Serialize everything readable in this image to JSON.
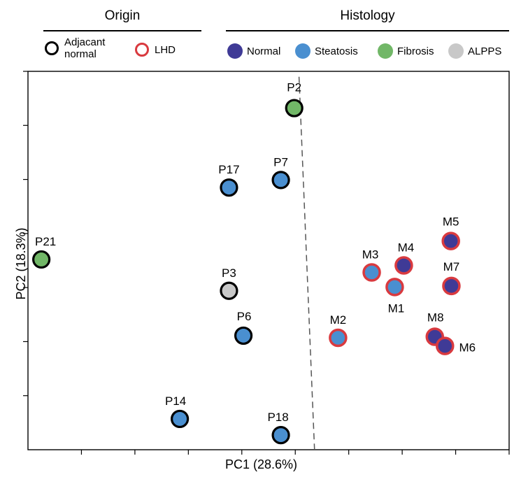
{
  "legend": {
    "origin": {
      "title": "Origin",
      "items": [
        {
          "label_line1": "Adjacant",
          "label_line2": "normal",
          "color": "#000000"
        },
        {
          "label": "LHD",
          "color": "#d93a3f"
        }
      ]
    },
    "histology": {
      "title": "Histology",
      "items": [
        {
          "label": "Normal",
          "color": "#3f3a96"
        },
        {
          "label": "Steatosis",
          "color": "#4a8fd0"
        },
        {
          "label": "Fibrosis",
          "color": "#71b767"
        },
        {
          "label": "ALPPS",
          "color": "#c8c8c8"
        }
      ]
    }
  },
  "chart_data": {
    "type": "scatter",
    "xlabel": "PC1 (28.6%)",
    "ylabel": "PC2 (18.3%)",
    "xlim": [
      0,
      9
    ],
    "ylim": [
      0,
      7
    ],
    "x_ticks": [
      1,
      2,
      3,
      4,
      5,
      6,
      7,
      8,
      9
    ],
    "y_ticks": [
      1,
      2,
      3,
      4,
      5,
      6,
      7
    ],
    "tick_labels_shown": false,
    "divider": {
      "style": "dashed",
      "from": [
        5.07,
        6.9
      ],
      "to": [
        5.36,
        0
      ]
    },
    "points": [
      {
        "label": "P2",
        "x": 4.98,
        "y": 6.32,
        "origin": "Adjacant normal",
        "histology": "Fibrosis"
      },
      {
        "label": "P17",
        "x": 3.76,
        "y": 4.85,
        "origin": "Adjacant normal",
        "histology": "Steatosis"
      },
      {
        "label": "P7",
        "x": 4.73,
        "y": 4.99,
        "origin": "Adjacant normal",
        "histology": "Steatosis"
      },
      {
        "label": "P21",
        "x": 0.25,
        "y": 3.52,
        "origin": "Adjacant normal",
        "histology": "Fibrosis"
      },
      {
        "label": "P3",
        "x": 3.76,
        "y": 2.94,
        "origin": "Adjacant normal",
        "histology": "ALPPS"
      },
      {
        "label": "P6",
        "x": 4.03,
        "y": 2.11,
        "origin": "Adjacant normal",
        "histology": "Steatosis"
      },
      {
        "label": "P14",
        "x": 2.84,
        "y": 0.57,
        "origin": "Adjacant normal",
        "histology": "Steatosis"
      },
      {
        "label": "P18",
        "x": 4.73,
        "y": 0.27,
        "origin": "Adjacant normal",
        "histology": "Steatosis"
      },
      {
        "label": "M5",
        "x": 7.91,
        "y": 3.86,
        "origin": "LHD",
        "histology": "Normal"
      },
      {
        "label": "M4",
        "x": 7.03,
        "y": 3.41,
        "origin": "LHD",
        "histology": "Normal"
      },
      {
        "label": "M3",
        "x": 6.43,
        "y": 3.28,
        "origin": "LHD",
        "histology": "Steatosis"
      },
      {
        "label": "M7",
        "x": 7.92,
        "y": 3.03,
        "origin": "LHD",
        "histology": "Normal"
      },
      {
        "label": "M1",
        "x": 6.86,
        "y": 3.01,
        "origin": "LHD",
        "histology": "Steatosis"
      },
      {
        "label": "M2",
        "x": 5.8,
        "y": 2.07,
        "origin": "LHD",
        "histology": "Steatosis"
      },
      {
        "label": "M8",
        "x": 7.61,
        "y": 2.09,
        "origin": "LHD",
        "histology": "Normal"
      },
      {
        "label": "M6",
        "x": 7.8,
        "y": 1.92,
        "origin": "LHD",
        "histology": "Normal"
      }
    ]
  }
}
